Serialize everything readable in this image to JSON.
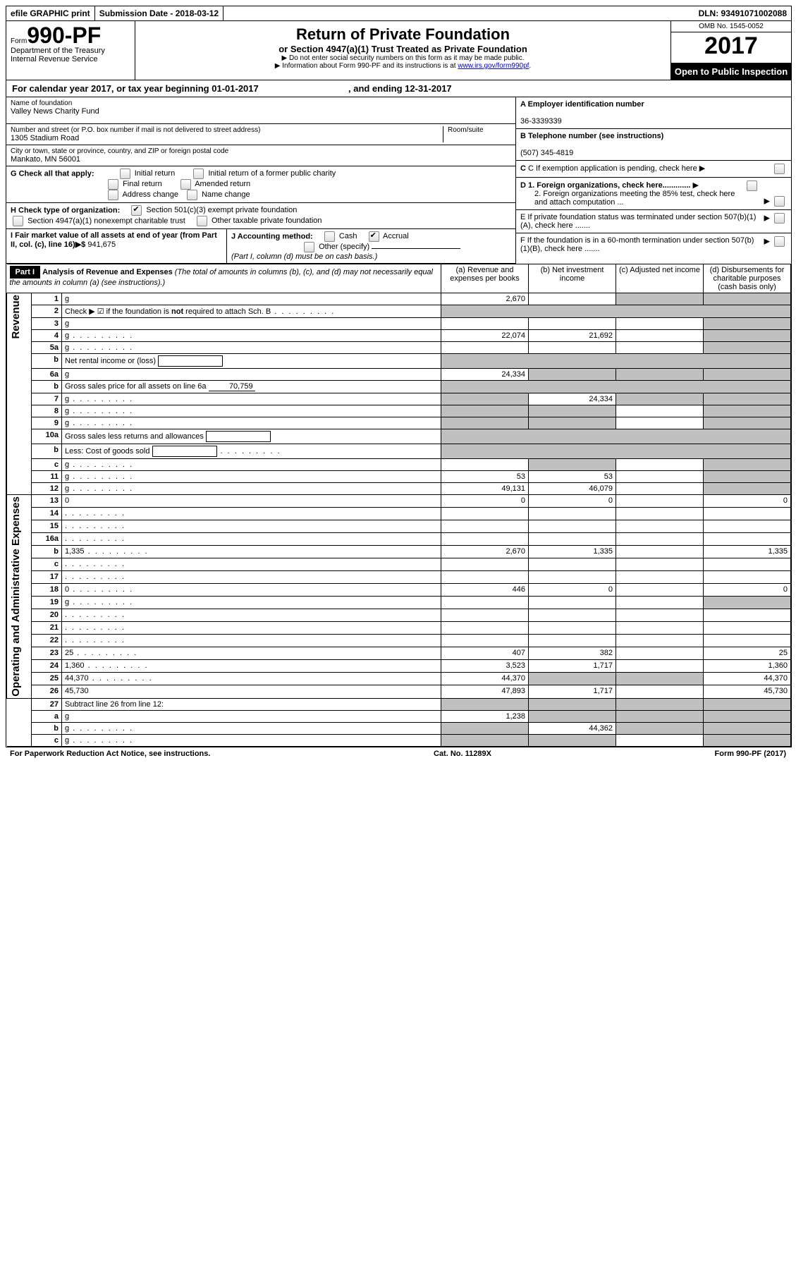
{
  "topbar": {
    "efile": "efile GRAPHIC print",
    "submission": "Submission Date - 2018-03-12",
    "dln": "DLN: 93491071002088"
  },
  "header": {
    "form_word": "Form",
    "form_num": "990-PF",
    "dept": "Department of the Treasury",
    "irs": "Internal Revenue Service",
    "title": "Return of Private Foundation",
    "subtitle": "or Section 4947(a)(1) Trust Treated as Private Foundation",
    "note1": "▶ Do not enter social security numbers on this form as it may be made public.",
    "note2_pre": "▶ Information about Form 990-PF and its instructions is at ",
    "note2_link": "www.irs.gov/form990pf",
    "omb": "OMB No. 1545-0052",
    "year": "2017",
    "open": "Open to Public Inspection"
  },
  "calyear": {
    "pre": "For calendar year 2017, or tax year beginning ",
    "begin": "01-01-2017",
    "mid": " , and ending ",
    "end": "12-31-2017"
  },
  "left": {
    "name_lbl": "Name of foundation",
    "name": "Valley News Charity Fund",
    "addr_lbl": "Number and street (or P.O. box number if mail is not delivered to street address)",
    "addr": "1305 Stadium Road",
    "room_lbl": "Room/suite",
    "city_lbl": "City or town, state or province, country, and ZIP or foreign postal code",
    "city": "Mankato, MN  56001"
  },
  "right": {
    "a_lbl": "A Employer identification number",
    "a_val": "36-3339339",
    "b_lbl": "B Telephone number (see instructions)",
    "b_val": "(507) 345-4819",
    "c_lbl": "C If exemption application is pending, check here",
    "d1": "D 1. Foreign organizations, check here.............",
    "d2": "2. Foreign organizations meeting the 85% test, check here and attach computation ...",
    "e": "E  If private foundation status was terminated under section 507(b)(1)(A), check here .......",
    "f": "F  If the foundation is in a 60-month termination under section 507(b)(1)(B), check here ......."
  },
  "g": {
    "label": "G Check all that apply:",
    "opts": [
      "Initial return",
      "Initial return of a former public charity",
      "Final return",
      "Amended return",
      "Address change",
      "Name change"
    ]
  },
  "h": {
    "label": "H Check type of organization:",
    "o1": "Section 501(c)(3) exempt private foundation",
    "o2": "Section 4947(a)(1) nonexempt charitable trust",
    "o3": "Other taxable private foundation"
  },
  "i": {
    "label": "I Fair market value of all assets at end of year (from Part II, col. (c), line 16)▶$",
    "val": "941,675"
  },
  "j": {
    "label": "J Accounting method:",
    "cash": "Cash",
    "accrual": "Accrual",
    "other": "Other (specify)",
    "note": "(Part I, column (d) must be on cash basis.)"
  },
  "part1": {
    "tag": "Part I",
    "title": "Analysis of Revenue and Expenses",
    "title_note": "(The total of amounts in columns (b), (c), and (d) may not necessarily equal the amounts in column (a) (see instructions).)",
    "cols": {
      "a": "(a)   Revenue and expenses per books",
      "b": "(b)  Net investment income",
      "c": "(c)  Adjusted net income",
      "d": "(d)  Disbursements for charitable purposes (cash basis only)"
    }
  },
  "sections": {
    "rev": "Revenue",
    "exp": "Operating and Administrative Expenses"
  },
  "rows": [
    {
      "n": "1",
      "d": "g",
      "a": "2,670",
      "b": "",
      "c": "g"
    },
    {
      "n": "2",
      "d": "Check ▶ ☑ if the foundation is <b>not</b> required to attach Sch. B",
      "dots": true,
      "span": true
    },
    {
      "n": "3",
      "d": "g",
      "a": "",
      "b": "",
      "c": ""
    },
    {
      "n": "4",
      "d": "g",
      "dots": true,
      "a": "22,074",
      "b": "21,692",
      "c": ""
    },
    {
      "n": "5a",
      "d": "g",
      "dots": true,
      "a": "",
      "b": "",
      "c": ""
    },
    {
      "n": "b",
      "d": "Net rental income or (loss)",
      "box": true,
      "span": true
    },
    {
      "n": "6a",
      "d": "g",
      "a": "24,334",
      "b": "g",
      "c": "g"
    },
    {
      "n": "b",
      "d": "Gross sales price for all assets on line 6a",
      "inline": "70,759",
      "span": true
    },
    {
      "n": "7",
      "d": "g",
      "dots": true,
      "a": "g",
      "b": "24,334",
      "c": "g"
    },
    {
      "n": "8",
      "d": "g",
      "dots": true,
      "a": "g",
      "b": "g",
      "c": ""
    },
    {
      "n": "9",
      "d": "g",
      "dots": true,
      "a": "g",
      "b": "g",
      "c": ""
    },
    {
      "n": "10a",
      "d": "Gross sales less returns and allowances",
      "box": true,
      "span": true
    },
    {
      "n": "b",
      "d": "Less: Cost of goods sold",
      "dots": true,
      "box": true,
      "span": true
    },
    {
      "n": "c",
      "d": "g",
      "dots": true,
      "a": "",
      "b": "g",
      "c": ""
    },
    {
      "n": "11",
      "d": "g",
      "dots": true,
      "a": "53",
      "b": "53",
      "c": ""
    },
    {
      "n": "12",
      "d": "g",
      "dots": true,
      "a": "49,131",
      "b": "46,079",
      "c": ""
    },
    {
      "n": "13",
      "d": "0",
      "a": "0",
      "b": "0",
      "c": "",
      "sec": "exp"
    },
    {
      "n": "14",
      "d": "",
      "dots": true,
      "a": "",
      "b": "",
      "c": ""
    },
    {
      "n": "15",
      "d": "",
      "dots": true,
      "a": "",
      "b": "",
      "c": ""
    },
    {
      "n": "16a",
      "d": "",
      "dots": true,
      "a": "",
      "b": "",
      "c": ""
    },
    {
      "n": "b",
      "d": "1,335",
      "dots": true,
      "a": "2,670",
      "b": "1,335",
      "c": ""
    },
    {
      "n": "c",
      "d": "",
      "dots": true,
      "a": "",
      "b": "",
      "c": ""
    },
    {
      "n": "17",
      "d": "",
      "dots": true,
      "a": "",
      "b": "",
      "c": ""
    },
    {
      "n": "18",
      "d": "0",
      "dots": true,
      "a": "446",
      "b": "0",
      "c": ""
    },
    {
      "n": "19",
      "d": "g",
      "dots": true,
      "a": "",
      "b": "",
      "c": ""
    },
    {
      "n": "20",
      "d": "",
      "dots": true,
      "a": "",
      "b": "",
      "c": ""
    },
    {
      "n": "21",
      "d": "",
      "dots": true,
      "a": "",
      "b": "",
      "c": ""
    },
    {
      "n": "22",
      "d": "",
      "dots": true,
      "a": "",
      "b": "",
      "c": ""
    },
    {
      "n": "23",
      "d": "25",
      "dots": true,
      "a": "407",
      "b": "382",
      "c": ""
    },
    {
      "n": "24",
      "d": "1,360",
      "dots": true,
      "a": "3,523",
      "b": "1,717",
      "c": ""
    },
    {
      "n": "25",
      "d": "44,370",
      "dots": true,
      "a": "44,370",
      "b": "g",
      "c": "g"
    },
    {
      "n": "26",
      "d": "45,730",
      "a": "47,893",
      "b": "1,717",
      "c": ""
    },
    {
      "n": "27",
      "d": "Subtract line 26 from line 12:",
      "span4g": true,
      "sec": "end"
    },
    {
      "n": "a",
      "d": "g",
      "a": "1,238",
      "b": "g",
      "c": "g"
    },
    {
      "n": "b",
      "d": "g",
      "dots": true,
      "a": "g",
      "b": "44,362",
      "c": "g"
    },
    {
      "n": "c",
      "d": "g",
      "dots": true,
      "a": "g",
      "b": "g",
      "c": ""
    }
  ],
  "footer": {
    "left": "For Paperwork Reduction Act Notice, see instructions.",
    "mid": "Cat. No. 11289X",
    "right": "Form 990-PF (2017)"
  },
  "colors": {
    "border": "#000000",
    "grey": "#c0c0c0",
    "link": "#0000cc"
  }
}
